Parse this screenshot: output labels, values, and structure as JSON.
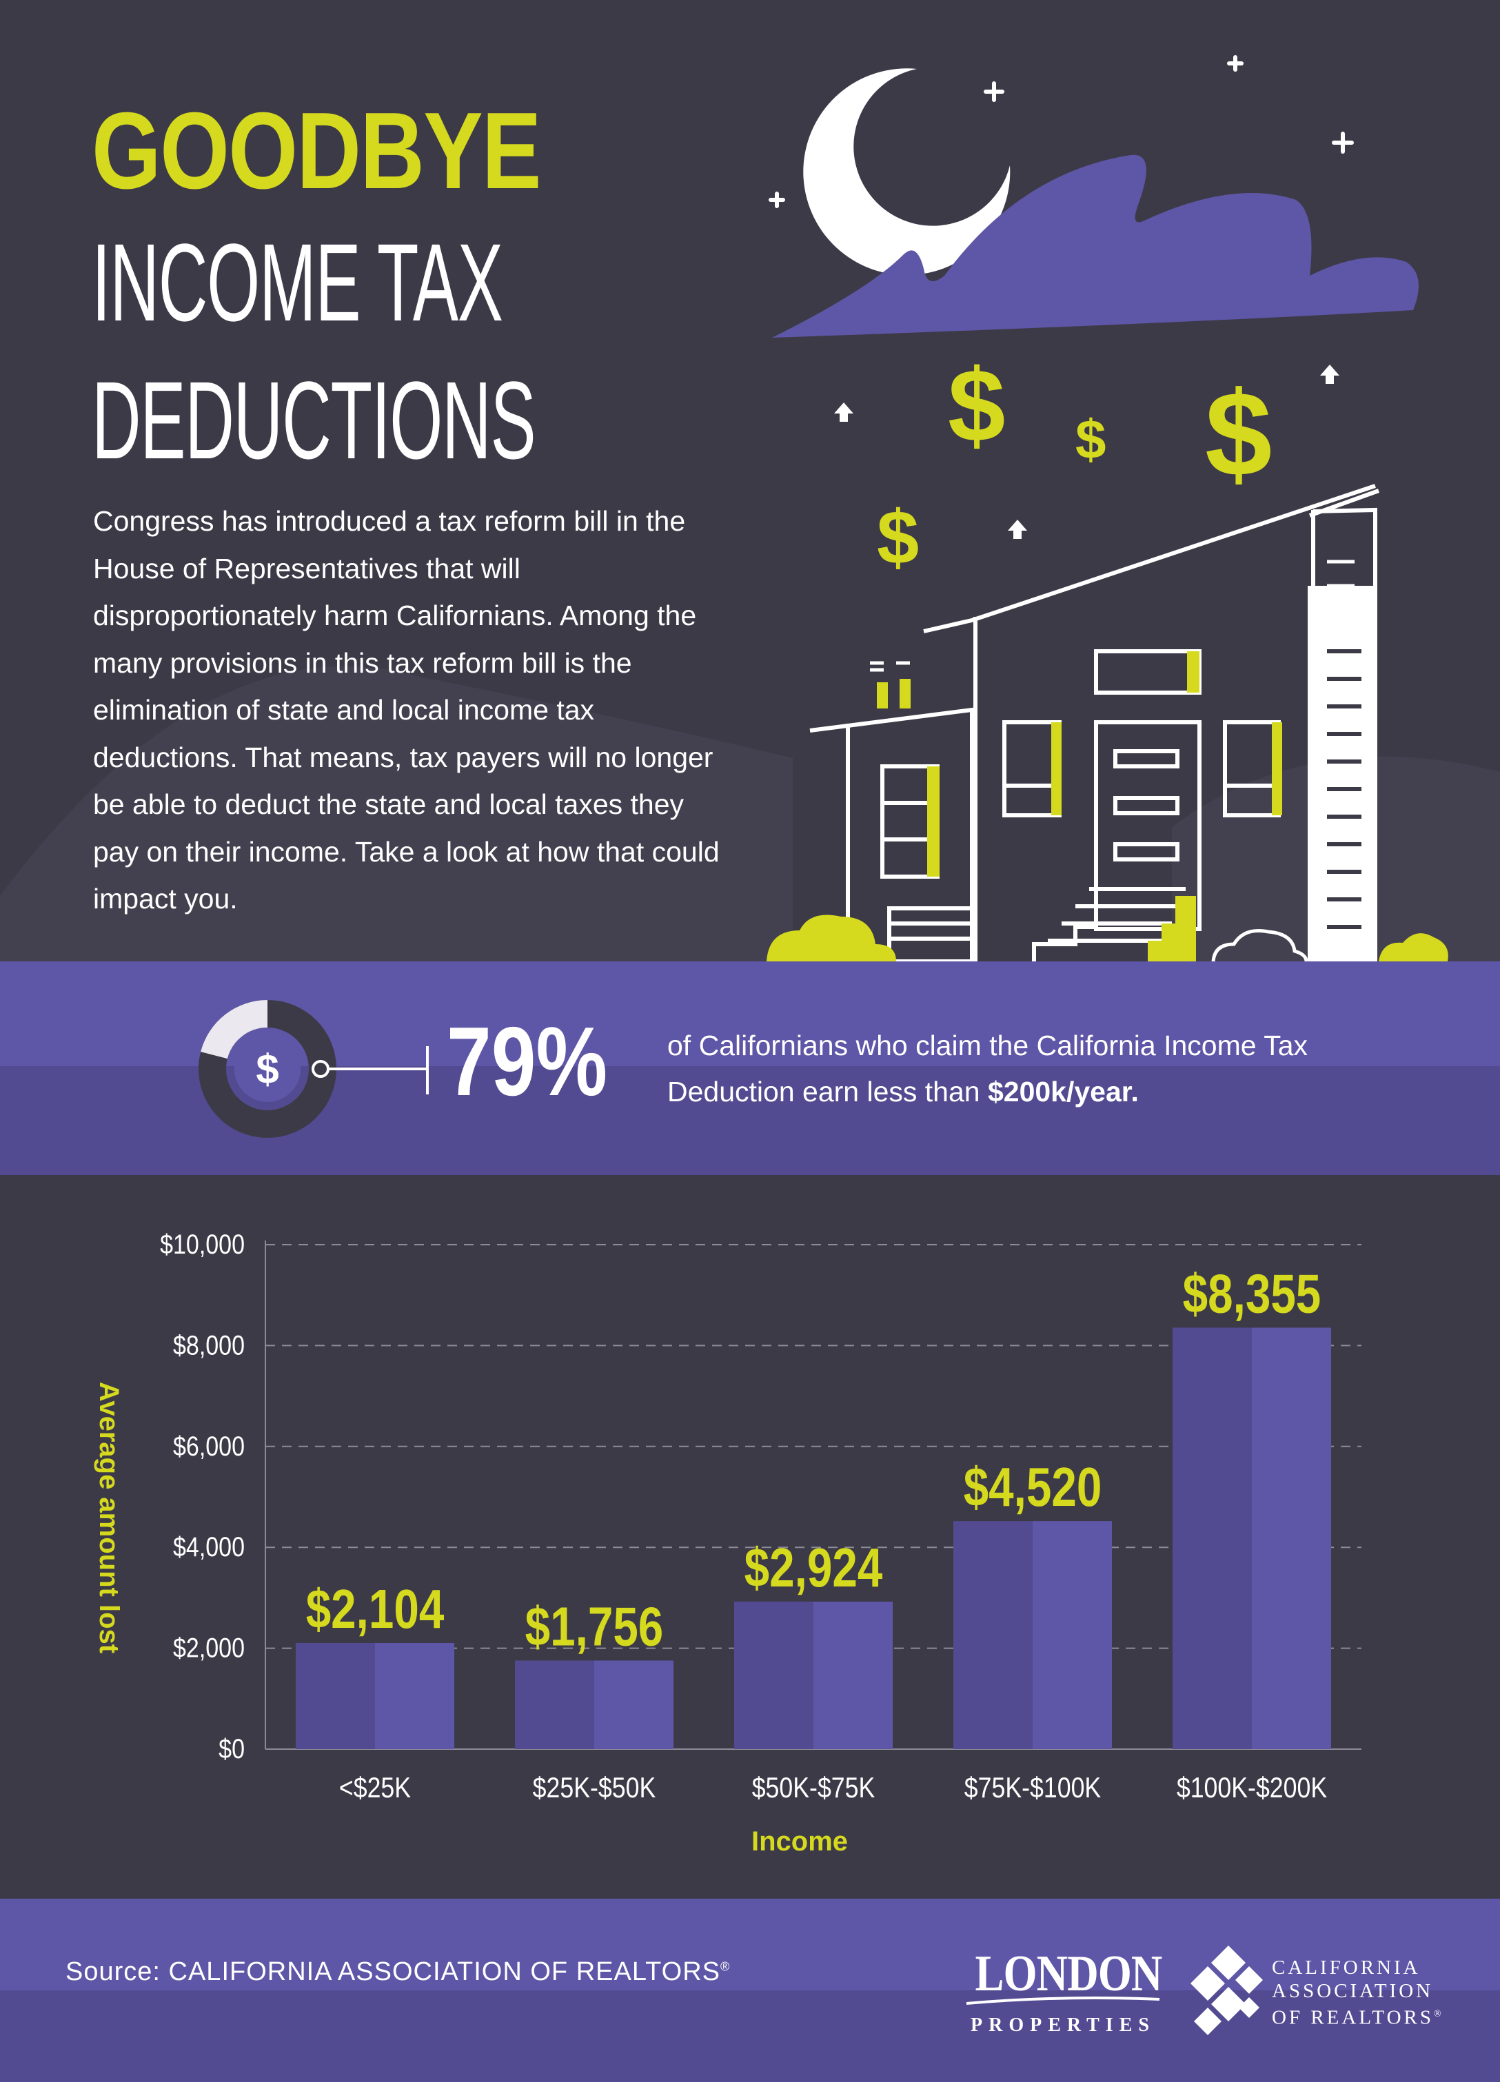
{
  "header": {
    "title_line1": "GOODBYE",
    "title_line2": "INCOME TAX",
    "title_line3": "DEDUCTIONS",
    "intro": "Congress has introduced a tax reform bill in the House of Representatives that will disproportionately harm Californians. Among the many provisions in this tax reform bill is the elimination of state and local income tax deductions. That means, tax payers will no longer be able to deduct the state and local taxes they pay on their income. Take a look at how that could impact you.",
    "icons": [
      "moon-icon",
      "cloud-icon",
      "dollar-sign-icon",
      "house-icon",
      "bush-icon",
      "arrow-up-icon"
    ]
  },
  "stat": {
    "value": "79%",
    "fraction": 0.79,
    "text_before": "of Californians who claim the California Income Tax Deduction earn less than ",
    "text_bold": "$200k/year.",
    "icon": "dollar-donut-icon"
  },
  "chart_data": {
    "type": "bar",
    "categories": [
      "<$25K",
      "$25K-$50K",
      "$50K-$75K",
      "$75K-$100K",
      "$100K-$200K"
    ],
    "values": [
      2104,
      1756,
      2924,
      4520,
      8355
    ],
    "value_labels": [
      "$2,104",
      "$1,756",
      "$2,924",
      "$4,520",
      "$8,355"
    ],
    "xlabel": "Income",
    "ylabel": "Average amount lost",
    "ylim": [
      0,
      10000
    ],
    "yticks": [
      0,
      2000,
      4000,
      6000,
      8000,
      10000
    ],
    "ytick_labels": [
      "$0",
      "$2,000",
      "$4,000",
      "$6,000",
      "$8,000",
      "$10,000"
    ],
    "grid": true
  },
  "footer": {
    "source": "Source: CALIFORNIA ASSOCIATION OF REALTORS",
    "london_line1": "LONDON",
    "london_line2": "PROPERTIES",
    "car_line1": "CALIFORNIA",
    "car_line2": "ASSOCIATION",
    "car_line3": "OF REALTORS"
  },
  "colors": {
    "background": "#3c3a47",
    "accent": "#d6da1e",
    "purple": "#5e56a6",
    "purple_dark": "#524b91",
    "white": "#ffffff"
  }
}
